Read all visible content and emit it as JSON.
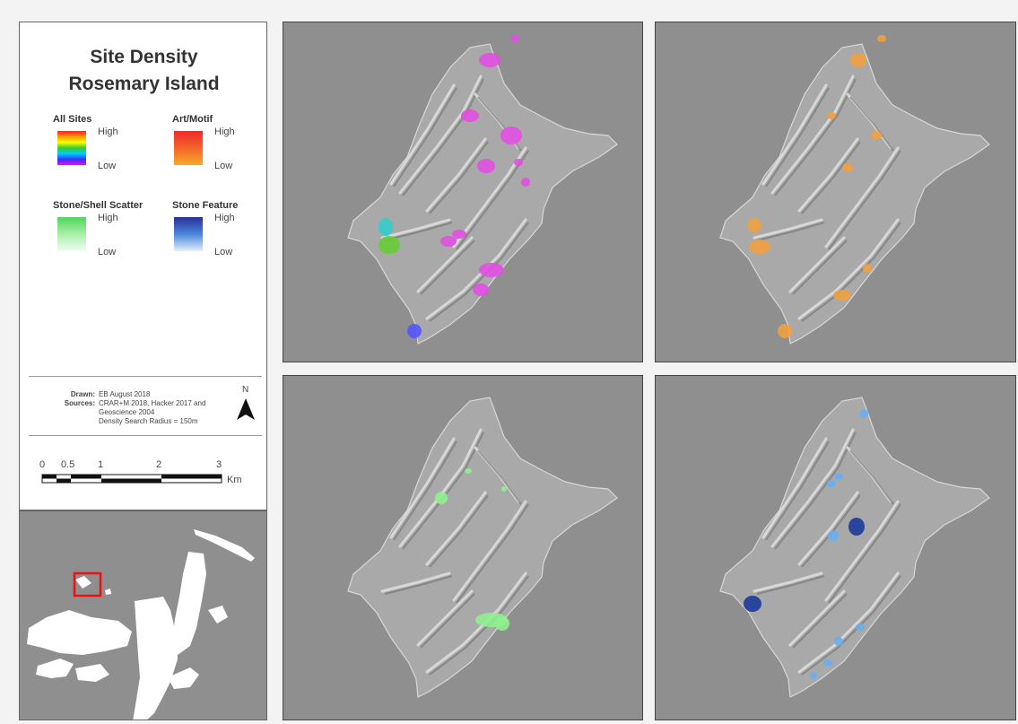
{
  "title_line1": "Site Density",
  "title_line2": "Rosemary Island",
  "legend": [
    {
      "title": "All Sites",
      "high": "High",
      "low": "Low",
      "ramp": [
        "#ff2020",
        "#ff9900",
        "#ffff00",
        "#33cc33",
        "#00ccff",
        "#3333ff",
        "#ff00ff"
      ]
    },
    {
      "title": "Art/Motif",
      "high": "High",
      "low": "Low",
      "ramp": [
        "#ee2a2a",
        "#f3652a",
        "#f9a92a"
      ]
    },
    {
      "title": "Stone/Shell Scatter",
      "high": "High",
      "low": "Low",
      "ramp": [
        "#52d45a",
        "#a8eeac",
        "#f3fcf3"
      ]
    },
    {
      "title": "Stone Feature",
      "high": "High",
      "low": "Low",
      "ramp": [
        "#2a2f9a",
        "#4a86dc",
        "#e4f0fb"
      ]
    }
  ],
  "credits": {
    "drawn_label": "Drawn:",
    "drawn_value": "EB August 2018",
    "sources_label": "Sources:",
    "sources_line1": "CRAR+M 2018, Hacker 2017 and",
    "sources_line2": "Geoscience 2004",
    "sources_line3": "Density Search Radius = 150m"
  },
  "north_label": "N",
  "scale": {
    "ticks": [
      "0",
      "0.5",
      "1",
      "2",
      "3"
    ],
    "unit": "Km"
  },
  "colors": {
    "all_sites": "#e14fe1",
    "art_motif": "#f0a040",
    "stone_scatter": "#8ef08e",
    "stone_feature": "#6aaef0",
    "inset_box": "#ee1111"
  }
}
